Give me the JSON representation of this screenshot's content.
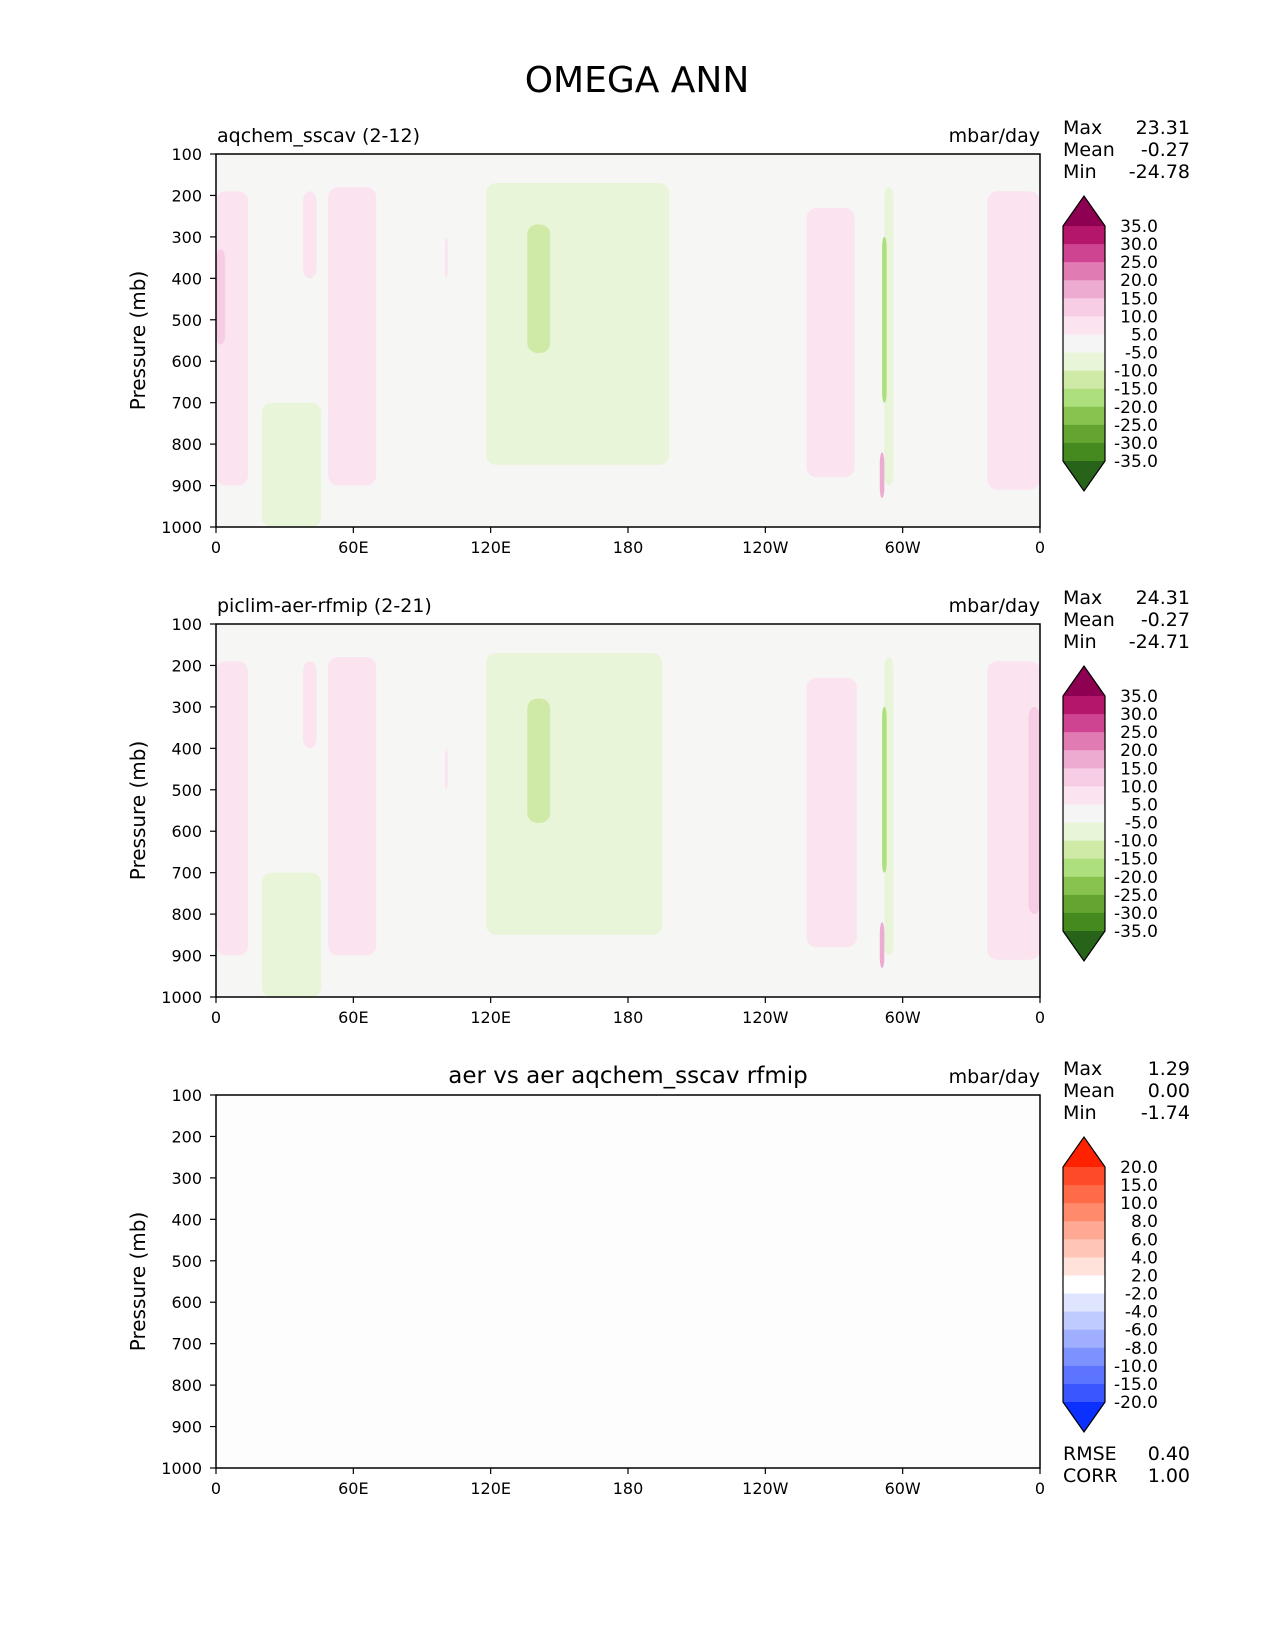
{
  "figure": {
    "title": "OMEGA ANN"
  },
  "chart_data": [
    {
      "type": "heatmap",
      "title": "aqchem_sscav (2-12)",
      "units": "mbar/day",
      "ylabel": "Pressure (mb)",
      "xticks": [
        "0",
        "60E",
        "120E",
        "180",
        "120W",
        "60W",
        "0"
      ],
      "yticks": [
        "100",
        "200",
        "300",
        "400",
        "500",
        "600",
        "700",
        "800",
        "900",
        "1000"
      ],
      "xlim": [
        0,
        360
      ],
      "ylim": [
        1000,
        100
      ],
      "stats": [
        {
          "label": "Max",
          "value": "23.31"
        },
        {
          "label": "Mean",
          "value": "-0.27"
        },
        {
          "label": "Min",
          "value": "-24.78"
        }
      ],
      "colorbar": {
        "labels": [
          "35.0",
          "30.0",
          "25.0",
          "20.0",
          "15.0",
          "10.0",
          "5.0",
          "-5.0",
          "-10.0",
          "-15.0",
          "-20.0",
          "-25.0",
          "-30.0",
          "-35.0"
        ],
        "colors": [
          "#8e0152",
          "#b3166a",
          "#cf4490",
          "#e17bb3",
          "#eeabd2",
          "#f7cde5",
          "#fbe4f0",
          "#f5f5f5",
          "#e9f5d9",
          "#cfe9a7",
          "#ade07d",
          "#88c34f",
          "#64a531",
          "#448a1e",
          "#276419"
        ]
      },
      "regions": [
        {
          "sign": "pos",
          "level": 1,
          "lon": [
            0,
            14
          ],
          "p": [
            190,
            900
          ]
        },
        {
          "sign": "pos",
          "level": 2,
          "lon": [
            0,
            4
          ],
          "p": [
            330,
            560
          ]
        },
        {
          "sign": "pos",
          "level": 1,
          "lon": [
            38,
            44
          ],
          "p": [
            190,
            400
          ]
        },
        {
          "sign": "pos",
          "level": 1,
          "lon": [
            49,
            70
          ],
          "p": [
            180,
            900
          ]
        },
        {
          "sign": "pos",
          "level": 1,
          "lon": [
            100,
            101
          ],
          "p": [
            300,
            400
          ]
        },
        {
          "sign": "neg",
          "level": 1,
          "lon": [
            118,
            198
          ],
          "p": [
            170,
            850
          ]
        },
        {
          "sign": "neg",
          "level": 2,
          "lon": [
            136,
            146
          ],
          "p": [
            270,
            580
          ]
        },
        {
          "sign": "pos",
          "level": 1,
          "lon": [
            258,
            279
          ],
          "p": [
            230,
            880
          ]
        },
        {
          "sign": "neg",
          "level": 1,
          "lon": [
            292,
            296
          ],
          "p": [
            180,
            900
          ]
        },
        {
          "sign": "neg",
          "level": 3,
          "lon": [
            291,
            293
          ],
          "p": [
            300,
            700
          ]
        },
        {
          "sign": "pos",
          "level": 3,
          "lon": [
            290,
            292
          ],
          "p": [
            820,
            930
          ]
        },
        {
          "sign": "pos",
          "level": 1,
          "lon": [
            337,
            360
          ],
          "p": [
            190,
            910
          ]
        },
        {
          "sign": "neg",
          "level": 1,
          "lon": [
            20,
            46
          ],
          "p": [
            700,
            1000
          ]
        }
      ]
    },
    {
      "type": "heatmap",
      "title": "piclim-aer-rfmip (2-21)",
      "units": "mbar/day",
      "ylabel": "Pressure (mb)",
      "xticks": [
        "0",
        "60E",
        "120E",
        "180",
        "120W",
        "60W",
        "0"
      ],
      "yticks": [
        "100",
        "200",
        "300",
        "400",
        "500",
        "600",
        "700",
        "800",
        "900",
        "1000"
      ],
      "xlim": [
        0,
        360
      ],
      "ylim": [
        1000,
        100
      ],
      "stats": [
        {
          "label": "Max",
          "value": "24.31"
        },
        {
          "label": "Mean",
          "value": "-0.27"
        },
        {
          "label": "Min",
          "value": "-24.71"
        }
      ],
      "colorbar": {
        "labels": [
          "35.0",
          "30.0",
          "25.0",
          "20.0",
          "15.0",
          "10.0",
          "5.0",
          "-5.0",
          "-10.0",
          "-15.0",
          "-20.0",
          "-25.0",
          "-30.0",
          "-35.0"
        ],
        "colors": [
          "#8e0152",
          "#b3166a",
          "#cf4490",
          "#e17bb3",
          "#eeabd2",
          "#f7cde5",
          "#fbe4f0",
          "#f5f5f5",
          "#e9f5d9",
          "#cfe9a7",
          "#ade07d",
          "#88c34f",
          "#64a531",
          "#448a1e",
          "#276419"
        ]
      },
      "regions": [
        {
          "sign": "pos",
          "level": 1,
          "lon": [
            0,
            14
          ],
          "p": [
            190,
            900
          ]
        },
        {
          "sign": "pos",
          "level": 1,
          "lon": [
            38,
            44
          ],
          "p": [
            190,
            400
          ]
        },
        {
          "sign": "pos",
          "level": 1,
          "lon": [
            49,
            70
          ],
          "p": [
            180,
            900
          ]
        },
        {
          "sign": "pos",
          "level": 1,
          "lon": [
            100,
            101
          ],
          "p": [
            400,
            500
          ]
        },
        {
          "sign": "neg",
          "level": 1,
          "lon": [
            118,
            195
          ],
          "p": [
            170,
            850
          ]
        },
        {
          "sign": "neg",
          "level": 2,
          "lon": [
            136,
            146
          ],
          "p": [
            280,
            580
          ]
        },
        {
          "sign": "pos",
          "level": 1,
          "lon": [
            258,
            280
          ],
          "p": [
            230,
            880
          ]
        },
        {
          "sign": "neg",
          "level": 1,
          "lon": [
            292,
            296
          ],
          "p": [
            180,
            900
          ]
        },
        {
          "sign": "neg",
          "level": 3,
          "lon": [
            291,
            293
          ],
          "p": [
            300,
            700
          ]
        },
        {
          "sign": "pos",
          "level": 3,
          "lon": [
            290,
            292
          ],
          "p": [
            820,
            930
          ]
        },
        {
          "sign": "pos",
          "level": 1,
          "lon": [
            337,
            360
          ],
          "p": [
            190,
            910
          ]
        },
        {
          "sign": "pos",
          "level": 2,
          "lon": [
            355,
            360
          ],
          "p": [
            300,
            800
          ]
        },
        {
          "sign": "neg",
          "level": 1,
          "lon": [
            20,
            46
          ],
          "p": [
            700,
            1000
          ]
        }
      ]
    },
    {
      "type": "heatmap",
      "title": "aer vs aer aqchem_sscav rfmip",
      "units": "mbar/day",
      "ylabel": "Pressure (mb)",
      "xticks": [
        "0",
        "60E",
        "120E",
        "180",
        "120W",
        "60W",
        "0"
      ],
      "yticks": [
        "100",
        "200",
        "300",
        "400",
        "500",
        "600",
        "700",
        "800",
        "900",
        "1000"
      ],
      "xlim": [
        0,
        360
      ],
      "ylim": [
        1000,
        100
      ],
      "stats": [
        {
          "label": "Max",
          "value": "1.29"
        },
        {
          "label": "Mean",
          "value": "0.00"
        },
        {
          "label": "Min",
          "value": "-1.74"
        }
      ],
      "colorbar": {
        "labels": [
          "20.0",
          "15.0",
          "10.0",
          "8.0",
          "6.0",
          "4.0",
          "2.0",
          "-2.0",
          "-4.0",
          "-6.0",
          "-8.0",
          "-10.0",
          "-15.0",
          "-20.0"
        ],
        "colors": [
          "#ff2200",
          "#ff4a2a",
          "#ff6a48",
          "#ff8a6c",
          "#ffa893",
          "#ffc6b8",
          "#ffe2da",
          "#ffffff",
          "#dfe5ff",
          "#bfcaff",
          "#9faeff",
          "#7e92ff",
          "#5c74ff",
          "#3a57ff",
          "#0b30ff"
        ]
      },
      "regions": [],
      "metrics": [
        {
          "label": "RMSE",
          "value": "0.40"
        },
        {
          "label": "CORR",
          "value": "1.00"
        }
      ]
    }
  ]
}
